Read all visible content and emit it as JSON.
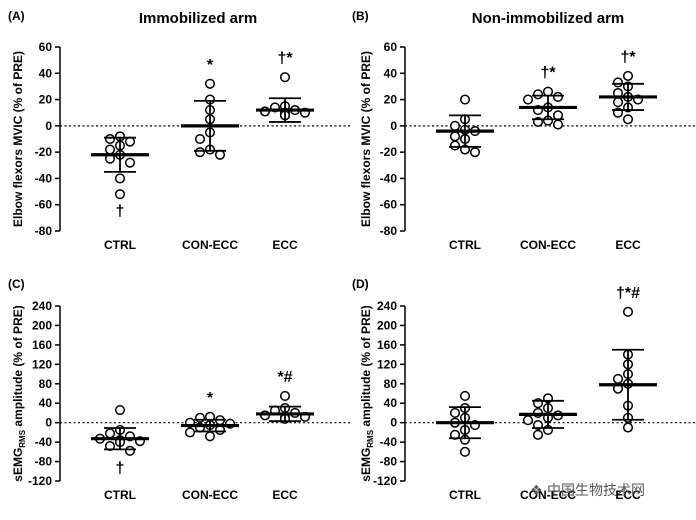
{
  "chart_data": [
    {
      "type": "scatter",
      "panel": "(A)",
      "title": "Immobilized arm",
      "ylabel": "Elbow flexors MVIC (% of PRE)",
      "ylim": [
        -80,
        60
      ],
      "yticks": [
        "60",
        "40",
        "20",
        "0",
        "-20",
        "-40",
        "-60",
        "-80"
      ],
      "categories": [
        "CTRL",
        "CON-ECC",
        "ECC"
      ],
      "groups": [
        {
          "points": [
            -8,
            -10,
            -12,
            -15,
            -18,
            -22,
            -25,
            -28,
            -40,
            -52
          ],
          "mean": -22,
          "sd": 13,
          "above": "",
          "below": "†"
        },
        {
          "points": [
            32,
            20,
            12,
            5,
            -5,
            -10,
            -18,
            -20,
            -22
          ],
          "mean": 0,
          "sd": 19,
          "above": "*",
          "below": ""
        },
        {
          "points": [
            37,
            15,
            14,
            12,
            11,
            10,
            10,
            9,
            8,
            8
          ],
          "mean": 12,
          "sd": 9,
          "above": "†*",
          "below": ""
        }
      ]
    },
    {
      "type": "scatter",
      "panel": "(B)",
      "title": "Non-immobilized arm",
      "ylabel": "Elbow flexors MVIC (% of PRE)",
      "ylim": [
        -80,
        60
      ],
      "yticks": [
        "60",
        "40",
        "20",
        "0",
        "-20",
        "-40",
        "-60",
        "-80"
      ],
      "categories": [
        "CTRL",
        "CON-ECC",
        "ECC"
      ],
      "groups": [
        {
          "points": [
            20,
            5,
            0,
            -3,
            -4,
            -8,
            -10,
            -15,
            -18,
            -20
          ],
          "mean": -4,
          "sd": 12,
          "above": "",
          "below": ""
        },
        {
          "points": [
            26,
            24,
            22,
            20,
            14,
            12,
            8,
            4,
            3,
            1
          ],
          "mean": 14,
          "sd": 9,
          "above": "†*",
          "below": ""
        },
        {
          "points": [
            38,
            33,
            30,
            25,
            22,
            20,
            18,
            14,
            10,
            5
          ],
          "mean": 22,
          "sd": 10,
          "above": "†*",
          "below": ""
        }
      ]
    },
    {
      "type": "scatter",
      "panel": "(C)",
      "title": "",
      "ylabel": "sEMG RMS amplitude (% of PRE)",
      "ylabel_main": "sEMG",
      "ylabel_sub": "RMS",
      "ylabel_rest": " amplitude (% of PRE)",
      "ylim": [
        -120,
        240
      ],
      "yticks": [
        "240",
        "200",
        "160",
        "120",
        "80",
        "40",
        "0",
        "-40",
        "-80",
        "-120"
      ],
      "categories": [
        "CTRL",
        "CON-ECC",
        "ECC"
      ],
      "groups": [
        {
          "points": [
            26,
            -15,
            -22,
            -28,
            -33,
            -36,
            -38,
            -40,
            -48,
            -58
          ],
          "mean": -33,
          "sd": 22,
          "above": "",
          "below": "†"
        },
        {
          "points": [
            12,
            10,
            5,
            0,
            -2,
            -5,
            -10,
            -15,
            -20,
            -28
          ],
          "mean": -6,
          "sd": 12,
          "above": "*",
          "below": ""
        },
        {
          "points": [
            55,
            30,
            25,
            20,
            15,
            12,
            10,
            8
          ],
          "mean": 18,
          "sd": 15,
          "above": "*#",
          "below": ""
        }
      ]
    },
    {
      "type": "scatter",
      "panel": "(D)",
      "title": "",
      "ylabel": "sEMG RMS amplitude (% of PRE)",
      "ylabel_main": "sEMG",
      "ylabel_sub": "RMS",
      "ylabel_rest": " amplitude (% of PRE)",
      "ylim": [
        -120,
        240
      ],
      "yticks": [
        "240",
        "200",
        "160",
        "120",
        "80",
        "40",
        "0",
        "-40",
        "-80",
        "-120"
      ],
      "categories": [
        "CTRL",
        "CON-ECC",
        "ECC"
      ],
      "groups": [
        {
          "points": [
            55,
            30,
            20,
            10,
            0,
            -5,
            -15,
            -25,
            -35,
            -60
          ],
          "mean": 0,
          "sd": 32,
          "above": "",
          "below": ""
        },
        {
          "points": [
            50,
            40,
            30,
            20,
            15,
            10,
            5,
            -5,
            -15,
            -25
          ],
          "mean": 17,
          "sd": 28,
          "above": "",
          "below": ""
        },
        {
          "points": [
            228,
            140,
            120,
            100,
            90,
            80,
            70,
            35,
            10,
            -10
          ],
          "mean": 78,
          "sd": 72,
          "above": "†*#",
          "below": ""
        }
      ]
    }
  ],
  "watermark": "中国生物技术网"
}
